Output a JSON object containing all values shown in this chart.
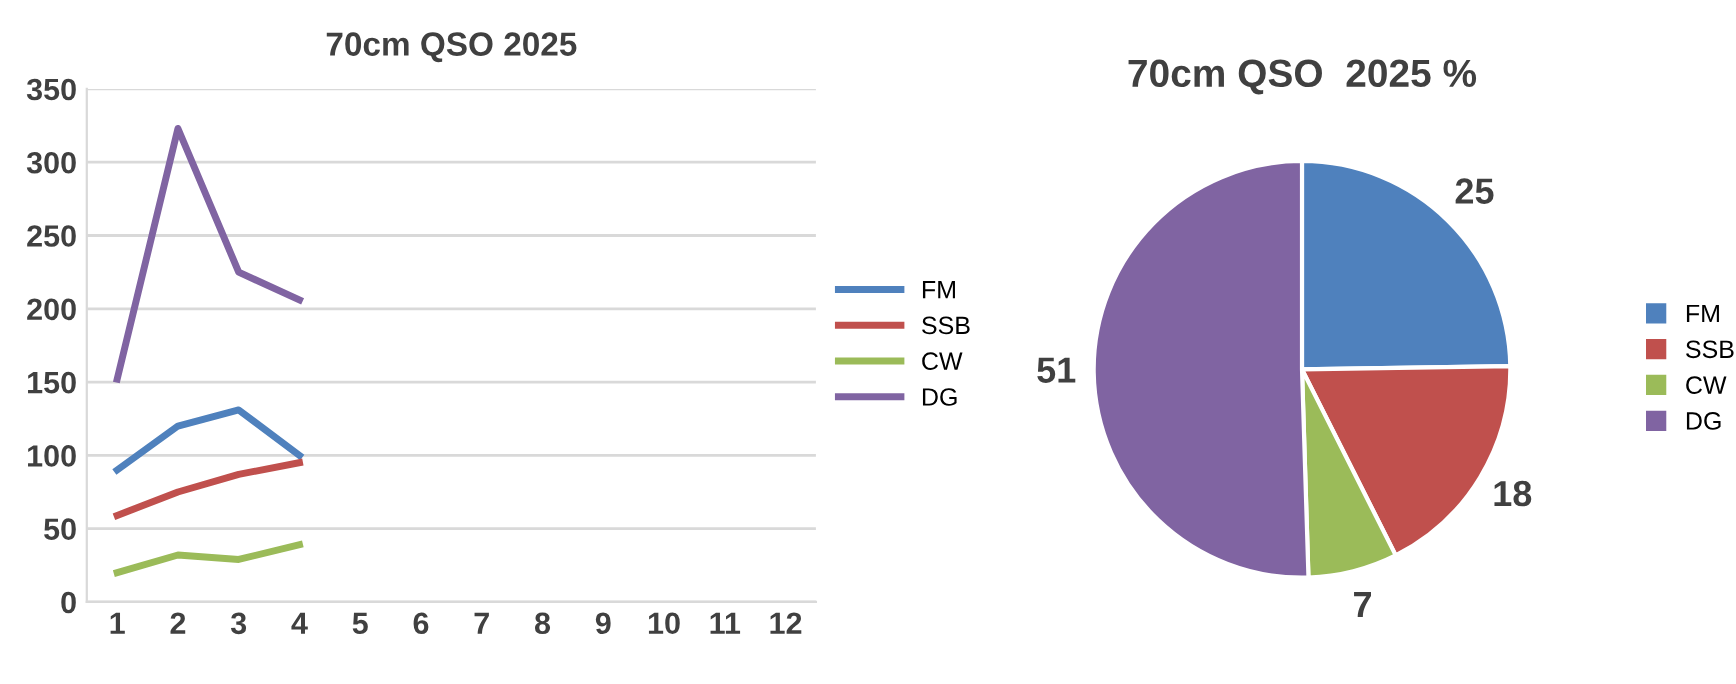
{
  "chart_data": [
    {
      "type": "line",
      "title": "70cm QSO 2025",
      "categories": [
        "1",
        "2",
        "3",
        "4",
        "5",
        "6",
        "7",
        "8",
        "9",
        "10",
        "11",
        "12"
      ],
      "series": [
        {
          "name": "FM",
          "color": "#4f81bd",
          "values": [
            90,
            120,
            131,
            100,
            null,
            null,
            null,
            null,
            null,
            null,
            null,
            null
          ]
        },
        {
          "name": "SSB",
          "color": "#c0504d",
          "values": [
            59,
            75,
            87,
            95,
            null,
            null,
            null,
            null,
            null,
            null,
            null,
            null
          ]
        },
        {
          "name": "CW",
          "color": "#9bbb59",
          "values": [
            20,
            32,
            29,
            39,
            null,
            null,
            null,
            null,
            null,
            null,
            null,
            null
          ]
        },
        {
          "name": "DG",
          "color": "#8064a2",
          "values": [
            152,
            323,
            225,
            206,
            null,
            null,
            null,
            null,
            null,
            null,
            null,
            null
          ]
        }
      ],
      "ylim": [
        0,
        350
      ],
      "yticks": [
        0,
        50,
        100,
        150,
        200,
        250,
        300,
        350
      ],
      "grid": "y",
      "legend": "right"
    },
    {
      "type": "pie",
      "title": "70cm QSO  2025 %",
      "categories": [
        "FM",
        "SSB",
        "CW",
        "DG"
      ],
      "values": [
        25,
        18,
        7,
        51
      ],
      "colors": [
        "#4f81bd",
        "#c0504d",
        "#9bbb59",
        "#8064a2"
      ],
      "data_labels": true,
      "legend": "right"
    }
  ]
}
